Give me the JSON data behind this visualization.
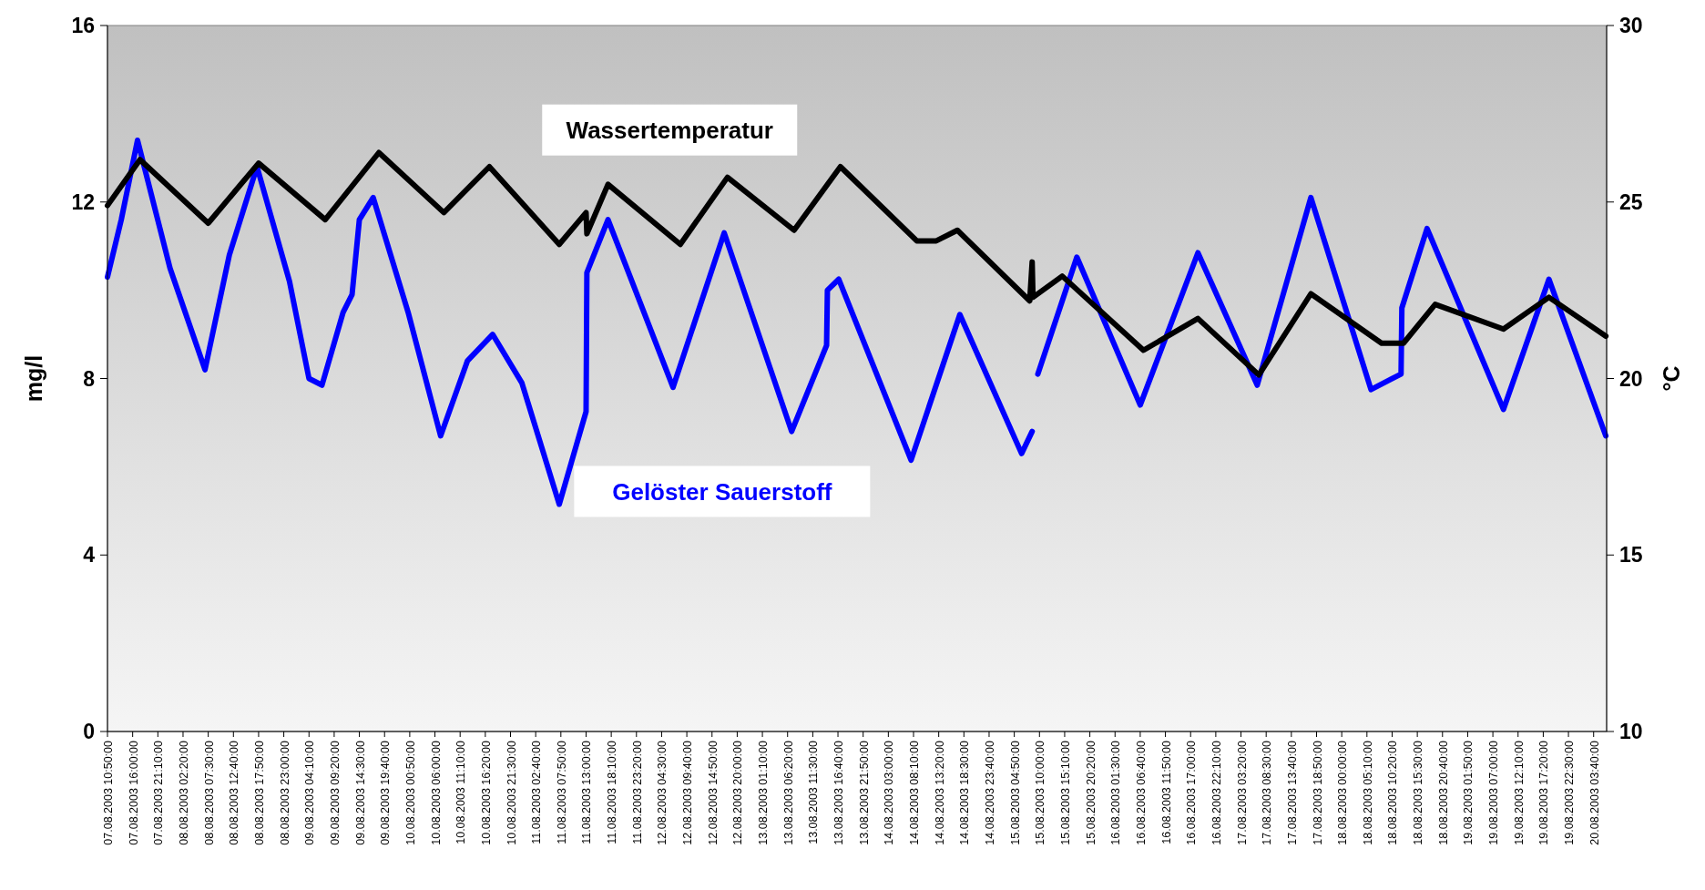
{
  "chart_data": {
    "type": "line",
    "ylabel": "mg/l",
    "y2label": "°C",
    "legend": false,
    "grid": false,
    "line_style": "solid",
    "xlim": [
      "2003-08-07T10:50",
      "2003-08-20T06:20"
    ],
    "ylim": [
      0,
      16
    ],
    "yticks": [
      0,
      4,
      8,
      12,
      16
    ],
    "y2lim": [
      10,
      30
    ],
    "y2ticks": [
      10,
      15,
      20,
      25,
      30
    ],
    "xticks": [
      {
        "value": "2003-08-07T10:50",
        "label": "07.08.2003 10:50:00"
      },
      {
        "value": "2003-08-07T16:00",
        "label": "07.08.2003 16:00:00"
      },
      {
        "value": "2003-08-07T21:10",
        "label": "07.08.2003 21:10:00"
      },
      {
        "value": "2003-08-08T02:20",
        "label": "08.08.2003 02:20:00"
      },
      {
        "value": "2003-08-08T07:30",
        "label": "08.08.2003 07:30:00"
      },
      {
        "value": "2003-08-08T12:40",
        "label": "08.08.2003 12:40:00"
      },
      {
        "value": "2003-08-08T17:50",
        "label": "08.08.2003 17:50:00"
      },
      {
        "value": "2003-08-08T23:00",
        "label": "08.08.2003 23:00:00"
      },
      {
        "value": "2003-08-09T04:10",
        "label": "09.08.2003 04:10:00"
      },
      {
        "value": "2003-08-09T09:20",
        "label": "09.08.2003 09:20:00"
      },
      {
        "value": "2003-08-09T14:30",
        "label": "09.08.2003 14:30:00"
      },
      {
        "value": "2003-08-09T19:40",
        "label": "09.08.2003 19:40:00"
      },
      {
        "value": "2003-08-10T00:50",
        "label": "10.08.2003 00:50:00"
      },
      {
        "value": "2003-08-10T06:00",
        "label": "10.08.2003 06:00:00"
      },
      {
        "value": "2003-08-10T11:10",
        "label": "10.08.2003 11:10:00"
      },
      {
        "value": "2003-08-10T16:20",
        "label": "10.08.2003 16:20:00"
      },
      {
        "value": "2003-08-10T21:30",
        "label": "10.08.2003 21:30:00"
      },
      {
        "value": "2003-08-11T02:40",
        "label": "11.08.2003 02:40:00"
      },
      {
        "value": "2003-08-11T07:50",
        "label": "11.08.2003 07:50:00"
      },
      {
        "value": "2003-08-11T13:00",
        "label": "11.08.2003 13:00:00"
      },
      {
        "value": "2003-08-11T18:10",
        "label": "11.08.2003 18:10:00"
      },
      {
        "value": "2003-08-11T23:20",
        "label": "11.08.2003 23:20:00"
      },
      {
        "value": "2003-08-12T04:30",
        "label": "12.08.2003 04:30:00"
      },
      {
        "value": "2003-08-12T09:40",
        "label": "12.08.2003 09:40:00"
      },
      {
        "value": "2003-08-12T14:50",
        "label": "12.08.2003 14:50:00"
      },
      {
        "value": "2003-08-12T20:00",
        "label": "12.08.2003 20:00:00"
      },
      {
        "value": "2003-08-13T01:10",
        "label": "13.08.2003 01:10:00"
      },
      {
        "value": "2003-08-13T06:20",
        "label": "13.08.2003 06:20:00"
      },
      {
        "value": "2003-08-13T11:30",
        "label": "13.08.2003 11:30:00"
      },
      {
        "value": "2003-08-13T16:40",
        "label": "13.08.2003 16:40:00"
      },
      {
        "value": "2003-08-13T21:50",
        "label": "13.08.2003 21:50:00"
      },
      {
        "value": "2003-08-14T03:00",
        "label": "14.08.2003 03:00:00"
      },
      {
        "value": "2003-08-14T08:10",
        "label": "14.08.2003 08:10:00"
      },
      {
        "value": "2003-08-14T13:20",
        "label": "14.08.2003 13:20:00"
      },
      {
        "value": "2003-08-14T18:30",
        "label": "14.08.2003 18:30:00"
      },
      {
        "value": "2003-08-14T23:40",
        "label": "14.08.2003 23:40:00"
      },
      {
        "value": "2003-08-15T04:50",
        "label": "15.08.2003 04:50:00"
      },
      {
        "value": "2003-08-15T10:00",
        "label": "15.08.2003 10:00:00"
      },
      {
        "value": "2003-08-15T15:10",
        "label": "15.08.2003 15:10:00"
      },
      {
        "value": "2003-08-15T20:20",
        "label": "15.08.2003 20:20:00"
      },
      {
        "value": "2003-08-16T01:30",
        "label": "16.08.2003 01:30:00"
      },
      {
        "value": "2003-08-16T06:40",
        "label": "16.08.2003 06:40:00"
      },
      {
        "value": "2003-08-16T11:50",
        "label": "16.08.2003 11:50:00"
      },
      {
        "value": "2003-08-16T17:00",
        "label": "16.08.2003 17:00:00"
      },
      {
        "value": "2003-08-16T22:10",
        "label": "16.08.2003 22:10:00"
      },
      {
        "value": "2003-08-17T03:20",
        "label": "17.08.2003 03:20:00"
      },
      {
        "value": "2003-08-17T08:30",
        "label": "17.08.2003 08:30:00"
      },
      {
        "value": "2003-08-17T13:40",
        "label": "17.08.2003 13:40:00"
      },
      {
        "value": "2003-08-17T18:50",
        "label": "17.08.2003 18:50:00"
      },
      {
        "value": "2003-08-18T00:00",
        "label": "18.08.2003 00:00:00"
      },
      {
        "value": "2003-08-18T05:10",
        "label": "18.08.2003 05:10:00"
      },
      {
        "value": "2003-08-18T10:20",
        "label": "18.08.2003 10:20:00"
      },
      {
        "value": "2003-08-18T15:30",
        "label": "18.08.2003 15:30:00"
      },
      {
        "value": "2003-08-18T20:40",
        "label": "18.08.2003 20:40:00"
      },
      {
        "value": "2003-08-19T01:50",
        "label": "19.08.2003 01:50:00"
      },
      {
        "value": "2003-08-19T07:00",
        "label": "19.08.2003 07:00:00"
      },
      {
        "value": "2003-08-19T12:10",
        "label": "19.08.2003 12:10:00"
      },
      {
        "value": "2003-08-19T17:20",
        "label": "19.08.2003 17:20:00"
      },
      {
        "value": "2003-08-19T22:30",
        "label": "19.08.2003 22:30:00"
      },
      {
        "value": "2003-08-20T03:40",
        "label": "20.08.2003 03:40:00"
      }
    ],
    "series": [
      {
        "name": "Gelöster Sauerstoff",
        "color": "#0000ff",
        "x": [
          "2003-08-07T10:50",
          "2003-08-07T13:40",
          "2003-08-07T17:00",
          "2003-08-07T23:40",
          "2003-08-08T06:50",
          "2003-08-08T11:50",
          "2003-08-08T17:30",
          "2003-08-09T00:10",
          "2003-08-09T04:10",
          "2003-08-09T06:50",
          "2003-08-09T11:10",
          "2003-08-09T13:00",
          "2003-08-09T14:30",
          "2003-08-09T17:20",
          "2003-08-10T00:30",
          "2003-08-10T07:10",
          "2003-08-10T12:40",
          "2003-08-10T17:50",
          "2003-08-10T23:50",
          "2003-08-11T07:30",
          "2003-08-11T13:00",
          "2003-08-11T13:10",
          "2003-08-11T17:30",
          "2003-08-12T06:50",
          "2003-08-12T17:20",
          "2003-08-13T07:10",
          "2003-08-13T14:20",
          "2003-08-13T14:30",
          "2003-08-13T16:50",
          "2003-08-14T07:40",
          "2003-08-14T17:40",
          "2003-08-15T06:20",
          "2003-08-15T08:30",
          "2003-08-15T08:40",
          "2003-08-15T09:40",
          "2003-08-15T17:40",
          "2003-08-16T06:40",
          "2003-08-16T18:30",
          "2003-08-17T06:40",
          "2003-08-17T17:40",
          "2003-08-18T06:00",
          "2003-08-18T12:10",
          "2003-08-18T12:20",
          "2003-08-18T17:30",
          "2003-08-19T09:10",
          "2003-08-19T18:30",
          "2003-08-20T06:10"
        ],
        "values": [
          10.3,
          11.6,
          13.4,
          10.5,
          8.2,
          10.8,
          12.8,
          10.2,
          8.0,
          7.85,
          9.5,
          9.9,
          11.6,
          12.1,
          9.5,
          6.7,
          8.4,
          9.0,
          7.9,
          5.15,
          7.25,
          10.4,
          11.6,
          7.8,
          11.3,
          6.8,
          8.75,
          10.0,
          10.25,
          6.15,
          9.45,
          6.3,
          6.8,
          null,
          8.1,
          10.75,
          7.4,
          10.85,
          7.85,
          12.1,
          7.75,
          8.1,
          9.6,
          11.4,
          7.3,
          10.25,
          6.7
        ]
      },
      {
        "name": "Wassertemperatur",
        "color": "#000000",
        "axis": "y2",
        "x": [
          "2003-08-07T10:50",
          "2003-08-07T17:30",
          "2003-08-08T07:30",
          "2003-08-08T17:50",
          "2003-08-09T07:30",
          "2003-08-09T18:30",
          "2003-08-10T07:50",
          "2003-08-10T17:10",
          "2003-08-11T07:30",
          "2003-08-11T13:00",
          "2003-08-11T13:10",
          "2003-08-11T17:30",
          "2003-08-12T08:20",
          "2003-08-12T18:00",
          "2003-08-13T07:40",
          "2003-08-13T17:10",
          "2003-08-14T08:50",
          "2003-08-14T12:50",
          "2003-08-14T17:10",
          "2003-08-15T08:00",
          "2003-08-15T08:30",
          "2003-08-15T08:40",
          "2003-08-15T14:40",
          "2003-08-16T07:20",
          "2003-08-16T18:30",
          "2003-08-17T07:00",
          "2003-08-17T17:40",
          "2003-08-18T08:10",
          "2003-08-18T12:40",
          "2003-08-18T19:10",
          "2003-08-19T09:10",
          "2003-08-19T18:30",
          "2003-08-20T06:10"
        ],
        "values": [
          24.9,
          26.2,
          24.4,
          26.1,
          24.5,
          26.4,
          24.7,
          26.0,
          23.8,
          24.7,
          24.1,
          25.5,
          23.8,
          25.7,
          24.2,
          26.0,
          23.9,
          23.9,
          24.2,
          22.2,
          23.3,
          22.3,
          22.9,
          20.8,
          21.7,
          20.1,
          22.4,
          21.0,
          21.0,
          22.1,
          21.4,
          22.3,
          21.2
        ]
      }
    ]
  }
}
